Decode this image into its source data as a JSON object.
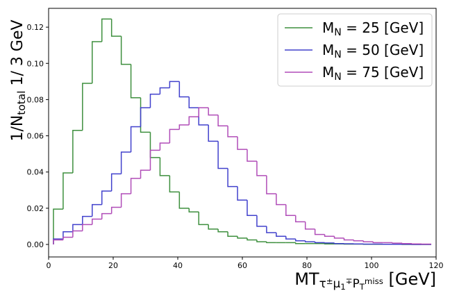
{
  "chart_data": {
    "type": "histogram",
    "xlabel": "MT_{τ^{±}μ_{1}^{∓}P_{T}^{miss}} [GeV]",
    "ylabel": "1/N_{total} 1/ 3 GeV",
    "bins": [
      1.5,
      4.5,
      7.5,
      10.5,
      13.5,
      16.5,
      19.5,
      22.5,
      25.5,
      28.5,
      31.5,
      34.5,
      37.5,
      40.5,
      43.5,
      46.5,
      49.5,
      52.5,
      55.5,
      58.5,
      61.5,
      64.5,
      67.5,
      70.5,
      73.5,
      76.5,
      79.5,
      82.5,
      85.5,
      88.5,
      91.5,
      94.5,
      97.5,
      100.5,
      103.5,
      106.5,
      109.5,
      112.5,
      115.5,
      118.5
    ],
    "series": [
      {
        "name": "M_{N} = 25 [GeV]",
        "color": "#3d8f3d",
        "values": [
          0.0195,
          0.0395,
          0.063,
          0.089,
          0.112,
          0.1245,
          0.115,
          0.0995,
          0.081,
          0.062,
          0.048,
          0.038,
          0.029,
          0.02,
          0.018,
          0.011,
          0.0085,
          0.007,
          0.0045,
          0.0035,
          0.0025,
          0.0015,
          0.001,
          0.001,
          0.001,
          0.0005,
          0.0005,
          0.0005,
          0.0003,
          0.0003,
          0.0002,
          0.0002,
          0.0001,
          0.0001,
          0.0001,
          0.0001,
          0,
          0,
          0
        ]
      },
      {
        "name": "M_{N} = 50 [GeV]",
        "color": "#4040cc",
        "values": [
          0.003,
          0.007,
          0.011,
          0.0155,
          0.022,
          0.0295,
          0.039,
          0.051,
          0.065,
          0.0755,
          0.083,
          0.0865,
          0.09,
          0.0815,
          0.0755,
          0.066,
          0.057,
          0.042,
          0.032,
          0.0245,
          0.016,
          0.01,
          0.0065,
          0.0045,
          0.003,
          0.002,
          0.0015,
          0.001,
          0.0008,
          0.0005,
          0.0004,
          0.0003,
          0.0002,
          0.0002,
          0.0001,
          0.0001,
          0.0001,
          0,
          0
        ]
      },
      {
        "name": "M_{N} = 75 [GeV]",
        "color": "#b04cb8",
        "values": [
          0.0025,
          0.004,
          0.0075,
          0.011,
          0.014,
          0.017,
          0.0205,
          0.028,
          0.0365,
          0.041,
          0.052,
          0.056,
          0.0635,
          0.066,
          0.0705,
          0.0755,
          0.0715,
          0.0655,
          0.0595,
          0.0525,
          0.046,
          0.038,
          0.028,
          0.022,
          0.016,
          0.0125,
          0.0085,
          0.0055,
          0.0045,
          0.0035,
          0.0025,
          0.002,
          0.0015,
          0.001,
          0.001,
          0.0007,
          0.0005,
          0.0003,
          0.0002
        ]
      }
    ],
    "xlim": [
      0,
      120
    ],
    "xticks": [
      0,
      20,
      40,
      60,
      80,
      100,
      120
    ],
    "ylim": [
      -0.0069,
      0.1304
    ],
    "yticks": [
      {
        "value": 0,
        "label": "0.00"
      },
      {
        "value": 0.02,
        "label": "0.02"
      },
      {
        "value": 0.04,
        "label": "0.04"
      },
      {
        "value": 0.06,
        "label": "0.06"
      },
      {
        "value": 0.08,
        "label": "0.08"
      },
      {
        "value": 0.1,
        "label": "0.10"
      },
      {
        "value": 0.12,
        "label": "0.12"
      }
    ],
    "legend": "upper right",
    "grid": false
  }
}
